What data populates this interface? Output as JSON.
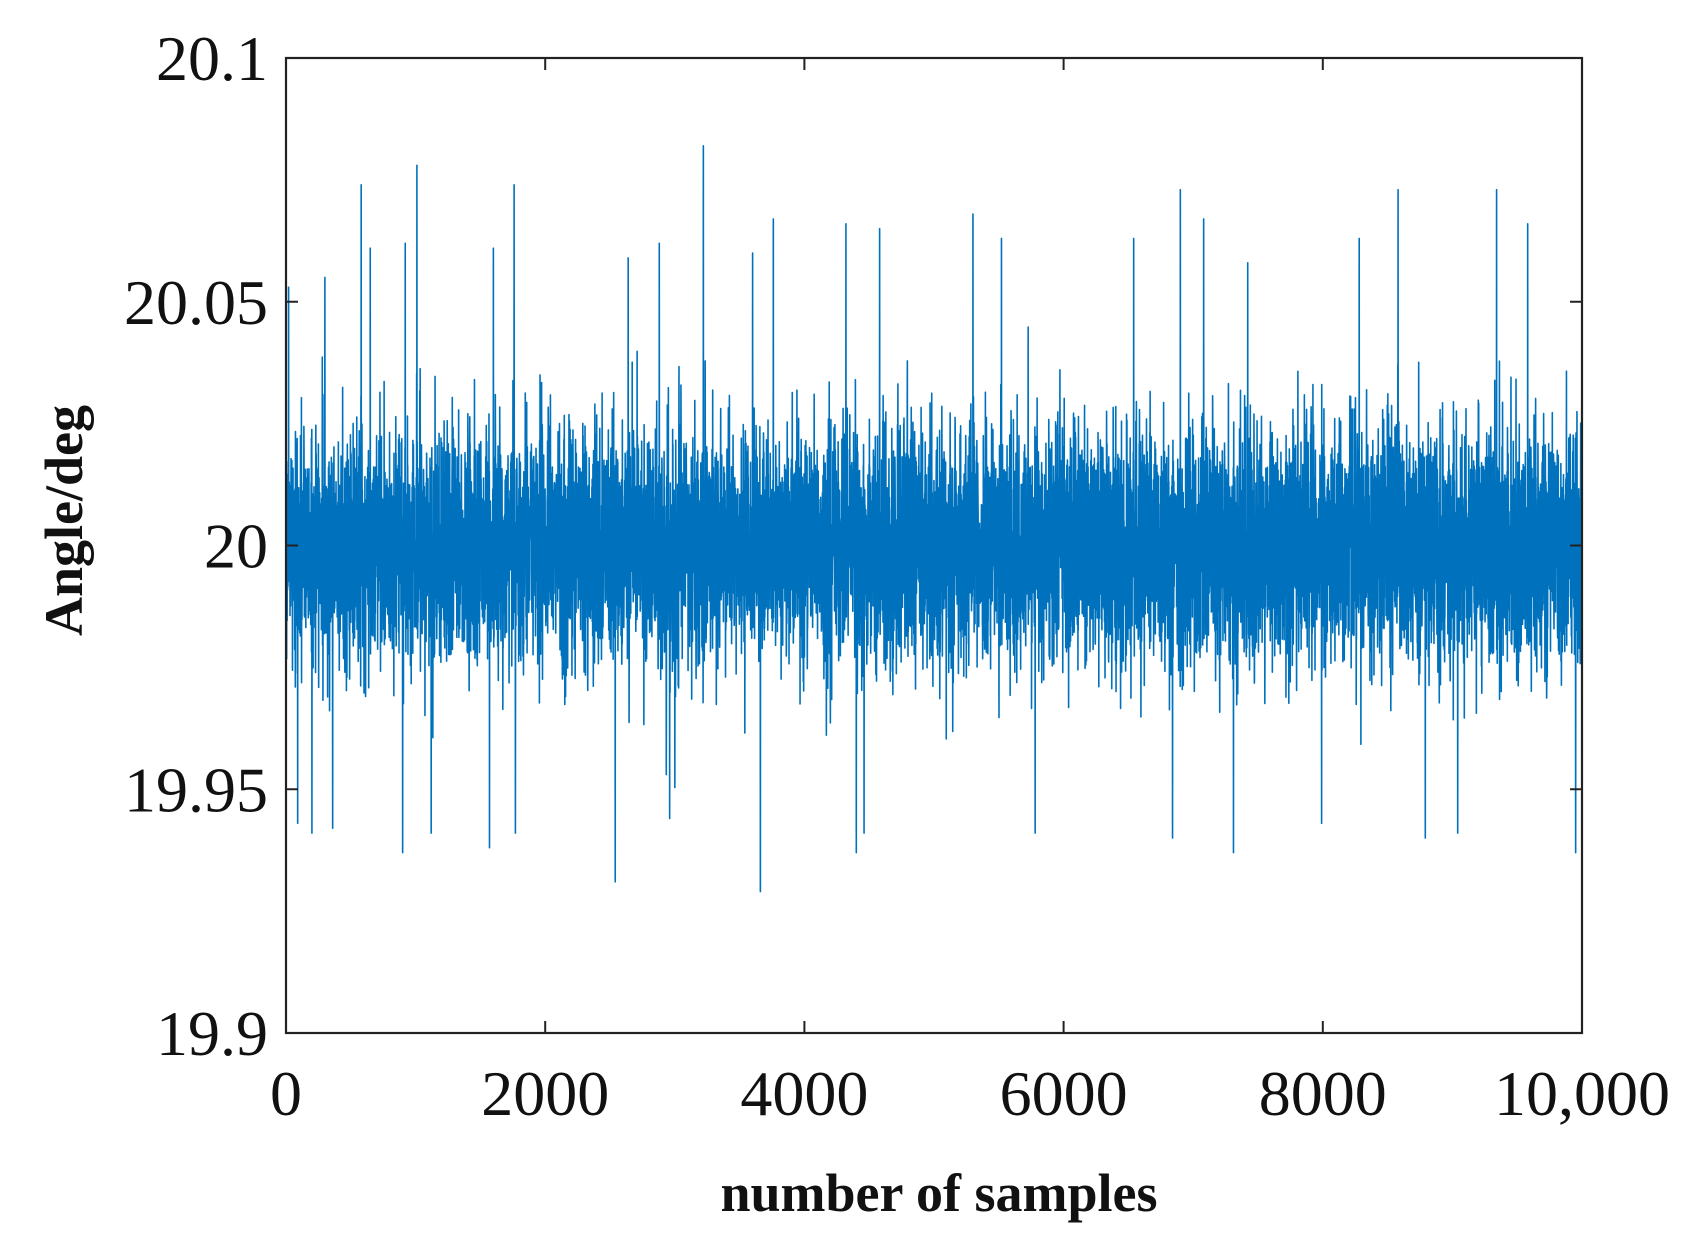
{
  "chart_data": {
    "type": "line",
    "title": "",
    "xlabel": "number of samples",
    "ylabel": "Angle/deg",
    "xlim": [
      0,
      10000
    ],
    "ylim": [
      19.9,
      20.1
    ],
    "xticks": [
      0,
      2000,
      4000,
      6000,
      8000,
      10000
    ],
    "xtick_labels": [
      "0",
      "2000",
      "4000",
      "6000",
      "8000",
      "10,000"
    ],
    "yticks": [
      19.9,
      19.95,
      20,
      20.05,
      20.1
    ],
    "ytick_labels": [
      "19.9",
      "19.95",
      "20",
      "20.05",
      "20.1"
    ],
    "grid": false,
    "legend": "none",
    "series": [
      {
        "color": "#0072BD",
        "n_samples": 10000,
        "mean": 20.0,
        "std_dev": 0.012,
        "max": 20.082,
        "min": 19.929,
        "peaks": [
          {
            "x": 20,
            "y": 20.053
          },
          {
            "x": 300,
            "y": 20.055
          },
          {
            "x": 580,
            "y": 20.074
          },
          {
            "x": 650,
            "y": 20.061
          },
          {
            "x": 920,
            "y": 20.062
          },
          {
            "x": 1010,
            "y": 20.078
          },
          {
            "x": 1600,
            "y": 20.061
          },
          {
            "x": 1760,
            "y": 20.074
          },
          {
            "x": 2640,
            "y": 20.059
          },
          {
            "x": 2880,
            "y": 20.062
          },
          {
            "x": 3220,
            "y": 20.082
          },
          {
            "x": 3600,
            "y": 20.06
          },
          {
            "x": 3760,
            "y": 20.067
          },
          {
            "x": 4320,
            "y": 20.066
          },
          {
            "x": 4580,
            "y": 20.065
          },
          {
            "x": 5300,
            "y": 20.068
          },
          {
            "x": 5520,
            "y": 20.063
          },
          {
            "x": 6540,
            "y": 20.063
          },
          {
            "x": 6900,
            "y": 20.073
          },
          {
            "x": 7080,
            "y": 20.067
          },
          {
            "x": 7420,
            "y": 20.058
          },
          {
            "x": 8280,
            "y": 20.063
          },
          {
            "x": 8580,
            "y": 20.073
          },
          {
            "x": 9340,
            "y": 20.073
          },
          {
            "x": 9580,
            "y": 20.066
          }
        ],
        "troughs": [
          {
            "x": 90,
            "y": 19.943
          },
          {
            "x": 200,
            "y": 19.941
          },
          {
            "x": 360,
            "y": 19.942
          },
          {
            "x": 900,
            "y": 19.937
          },
          {
            "x": 1120,
            "y": 19.941
          },
          {
            "x": 1570,
            "y": 19.938
          },
          {
            "x": 1770,
            "y": 19.941
          },
          {
            "x": 2540,
            "y": 19.931
          },
          {
            "x": 2960,
            "y": 19.944
          },
          {
            "x": 3660,
            "y": 19.929
          },
          {
            "x": 4400,
            "y": 19.937
          },
          {
            "x": 4460,
            "y": 19.941
          },
          {
            "x": 5780,
            "y": 19.941
          },
          {
            "x": 6840,
            "y": 19.94
          },
          {
            "x": 7310,
            "y": 19.937
          },
          {
            "x": 7990,
            "y": 19.943
          },
          {
            "x": 8790,
            "y": 19.94
          },
          {
            "x": 9040,
            "y": 19.941
          },
          {
            "x": 9950,
            "y": 19.937
          }
        ]
      }
    ]
  }
}
